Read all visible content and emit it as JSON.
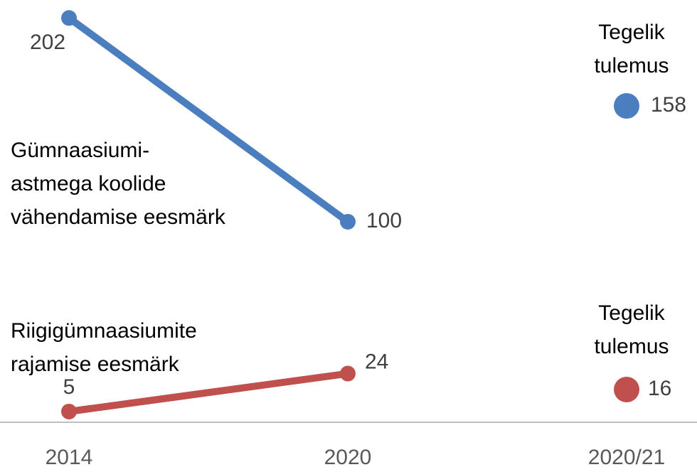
{
  "chart_data": {
    "type": "line",
    "categories": [
      "2014",
      "2020",
      "2020/21"
    ],
    "ylim": [
      0,
      211
    ],
    "series": [
      {
        "name": [
          "Gümnaasiumi-",
          "astmega koolide",
          "vähendamise eesmärk"
        ],
        "color": "#4a7ebf",
        "values": [
          202,
          100,
          null
        ]
      },
      {
        "name": [
          "Tegelik",
          "tulemus"
        ],
        "color": "#4a7ebf",
        "values": [
          null,
          null,
          158
        ]
      },
      {
        "name": [
          "Riigigümnaasiumite",
          "rajamise eesmärk"
        ],
        "color": "#c0504d",
        "values": [
          5,
          24,
          null
        ]
      },
      {
        "name": [
          "Tegelik",
          "tulemus"
        ],
        "color": "#c0504d",
        "values": [
          null,
          null,
          16
        ]
      }
    ]
  }
}
